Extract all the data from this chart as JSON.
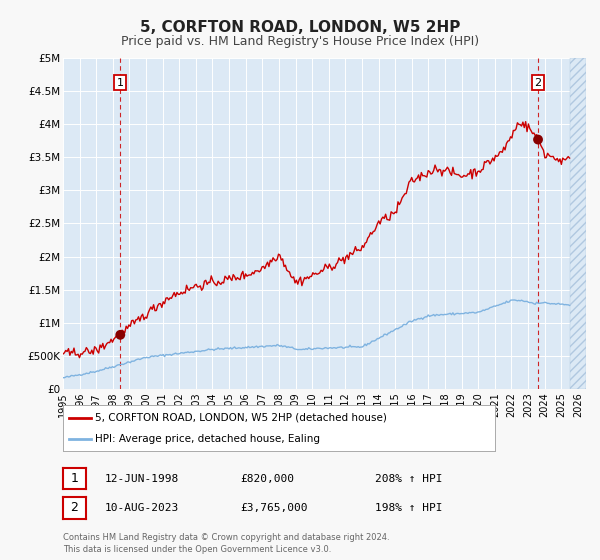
{
  "title": "5, CORFTON ROAD, LONDON, W5 2HP",
  "subtitle": "Price paid vs. HM Land Registry's House Price Index (HPI)",
  "title_fontsize": 11,
  "subtitle_fontsize": 9,
  "background_color": "#f8f8f8",
  "plot_bg_color": "#dce9f5",
  "grid_color": "#ffffff",
  "hpi_line_color": "#7fb3e0",
  "price_line_color": "#cc0000",
  "marker_color": "#880000",
  "vline_color": "#cc0000",
  "ylim": [
    0,
    5000000
  ],
  "yticks": [
    0,
    500000,
    1000000,
    1500000,
    2000000,
    2500000,
    3000000,
    3500000,
    4000000,
    4500000,
    5000000
  ],
  "ytick_labels": [
    "£0",
    "£500K",
    "£1M",
    "£1.5M",
    "£2M",
    "£2.5M",
    "£3M",
    "£3.5M",
    "£4M",
    "£4.5M",
    "£5M"
  ],
  "xlim_start": 1995.0,
  "xlim_end": 2026.5,
  "xtick_years": [
    1995,
    1996,
    1997,
    1998,
    1999,
    2000,
    2001,
    2002,
    2003,
    2004,
    2005,
    2006,
    2007,
    2008,
    2009,
    2010,
    2011,
    2012,
    2013,
    2014,
    2015,
    2016,
    2017,
    2018,
    2019,
    2020,
    2021,
    2022,
    2023,
    2024,
    2025,
    2026
  ],
  "sale1_x": 1998.45,
  "sale1_y": 820000,
  "sale1_label": "1",
  "sale1_date": "12-JUN-1998",
  "sale1_price": "£820,000",
  "sale1_hpi": "208% ↑ HPI",
  "sale2_x": 2023.6,
  "sale2_y": 3765000,
  "sale2_label": "2",
  "sale2_date": "10-AUG-2023",
  "sale2_price": "£3,765,000",
  "sale2_hpi": "198% ↑ HPI",
  "legend_line1": "5, CORFTON ROAD, LONDON, W5 2HP (detached house)",
  "legend_line2": "HPI: Average price, detached house, Ealing",
  "footer_line1": "Contains HM Land Registry data © Crown copyright and database right 2024.",
  "footer_line2": "This data is licensed under the Open Government Licence v3.0."
}
